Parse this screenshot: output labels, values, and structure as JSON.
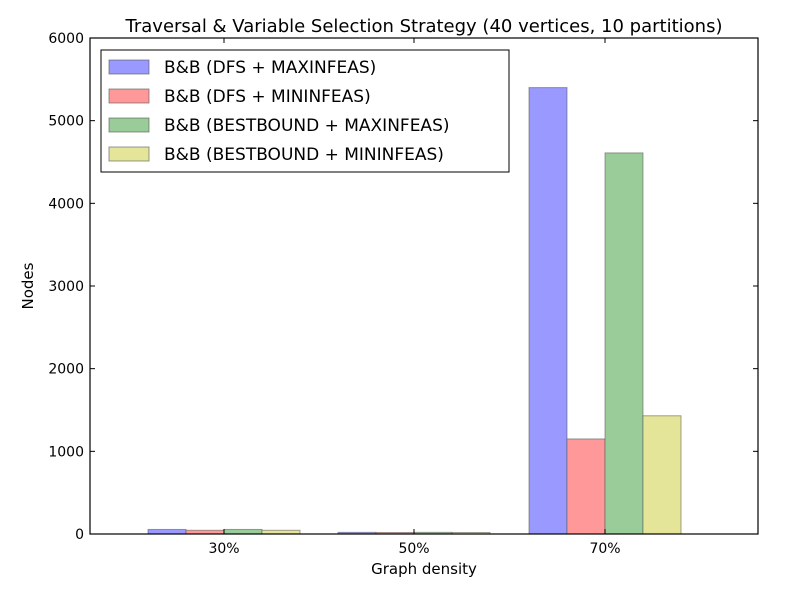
{
  "chart_data": {
    "type": "bar",
    "title": "Traversal & Variable Selection Strategy (40 vertices, 10 partitions)",
    "xlabel": "Graph density",
    "ylabel": "Nodes",
    "categories": [
      "30%",
      "50%",
      "70%"
    ],
    "ylim": [
      0,
      6000
    ],
    "yticks": [
      0,
      1000,
      2000,
      3000,
      4000,
      5000,
      6000
    ],
    "grid": false,
    "legend_position": "top-left",
    "series": [
      {
        "name": "B&B (DFS + MAXINFEAS)",
        "values": [
          55,
          20,
          5400
        ],
        "color": "#9999ff"
      },
      {
        "name": "B&B (DFS + MININFEAS)",
        "values": [
          45,
          18,
          1150
        ],
        "color": "#ff9999"
      },
      {
        "name": "B&B (BESTBOUND + MAXINFEAS)",
        "values": [
          55,
          20,
          4610
        ],
        "color": "#99cc99"
      },
      {
        "name": "B&B (BESTBOUND + MININFEAS)",
        "values": [
          45,
          18,
          1430
        ],
        "color": "#e5e599"
      }
    ]
  }
}
